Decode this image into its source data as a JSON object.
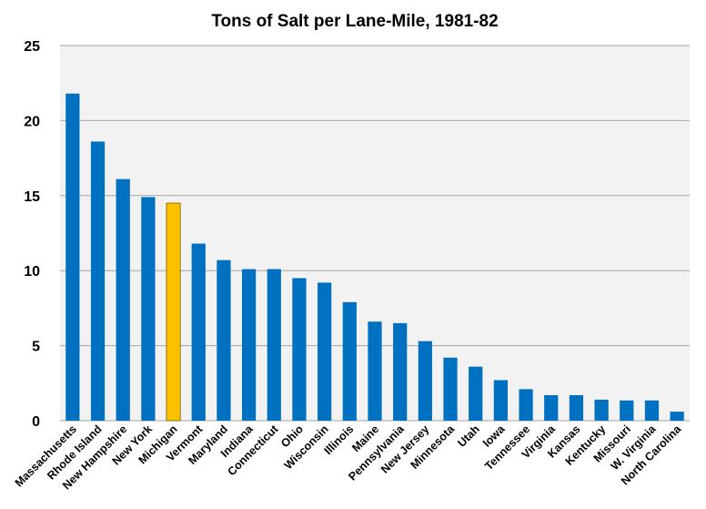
{
  "colors": {
    "plot_background": "#F2F2F2",
    "bar": "#0070C0",
    "highlight_bar": "#FFC000",
    "gridline": "#A6A6A6"
  },
  "chart_data": {
    "type": "bar",
    "title": "Tons of Salt per Lane-Mile, 1981-82",
    "xlabel": "",
    "ylabel": "",
    "ylim": [
      0,
      25
    ],
    "yticks": [
      0,
      5,
      10,
      15,
      20,
      25
    ],
    "grid": true,
    "legend": "none",
    "highlight_category": "Michigan",
    "categories": [
      "Massachusetts",
      "Rhode Island",
      "New Hampshire",
      "New York",
      "Michigan",
      "Vermont",
      "Maryland",
      "Indiana",
      "Connecticut",
      "Ohio",
      "Wisconsin",
      "Illinois",
      "Maine",
      "Pennsylvania",
      "New Jersey",
      "Minnesota",
      "Utah",
      "Iowa",
      "Tennessee",
      "Virginia",
      "Kansas",
      "Kentucky",
      "Missouri",
      "W. Virginia",
      "North Carolina"
    ],
    "values": [
      21.8,
      18.6,
      16.1,
      14.9,
      14.5,
      11.8,
      10.7,
      10.1,
      10.1,
      9.5,
      9.2,
      7.9,
      6.6,
      6.5,
      5.3,
      4.2,
      3.6,
      2.7,
      2.1,
      1.7,
      1.7,
      1.4,
      1.35,
      1.35,
      0.6
    ]
  }
}
